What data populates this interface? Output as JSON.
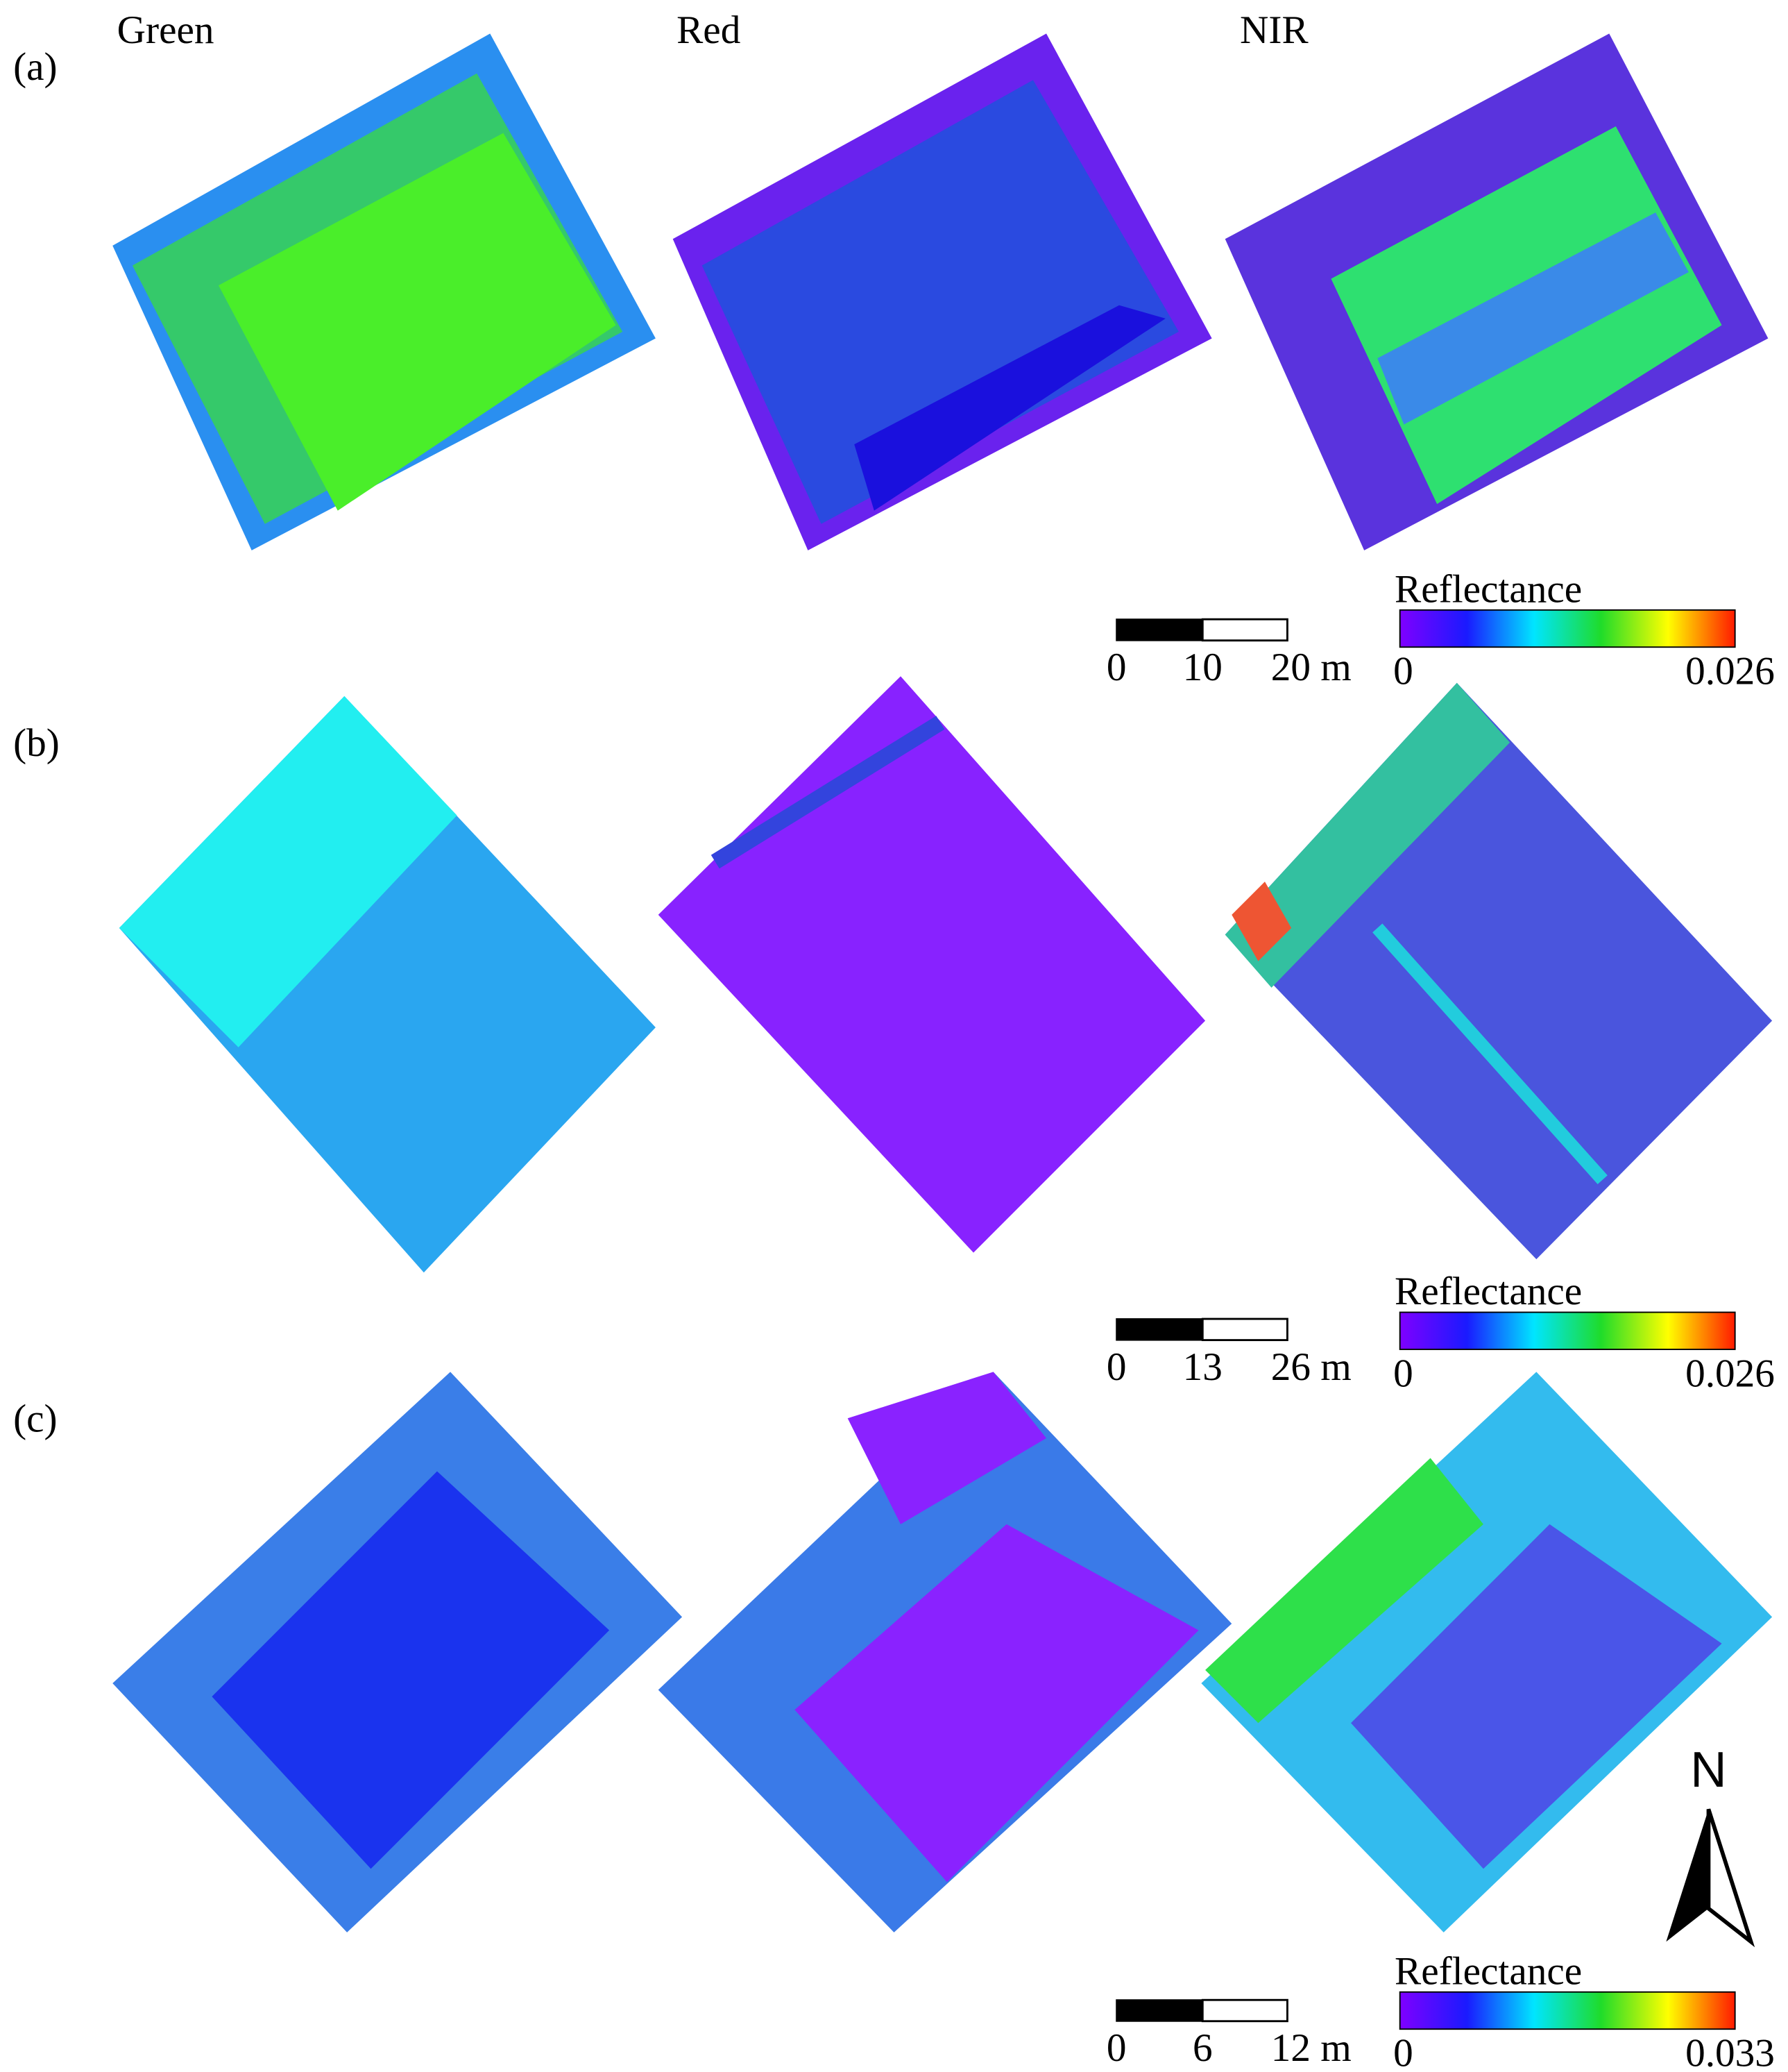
{
  "headers": [
    "Green",
    "Red",
    "NIR"
  ],
  "panels": [
    {
      "label": "(a)",
      "scale_bar": [
        "0",
        "10",
        "20 m"
      ],
      "colorbar": {
        "title": "Reflectance",
        "min": "0",
        "max": "0.026"
      }
    },
    {
      "label": "(b)",
      "scale_bar": [
        "0",
        "13",
        "26 m"
      ],
      "colorbar": {
        "title": "Reflectance",
        "min": "0",
        "max": "0.026"
      }
    },
    {
      "label": "(c)",
      "scale_bar": [
        "0",
        "6",
        "12 m"
      ],
      "colorbar": {
        "title": "Reflectance",
        "min": "0",
        "max": "0.033"
      }
    }
  ],
  "north": "N"
}
